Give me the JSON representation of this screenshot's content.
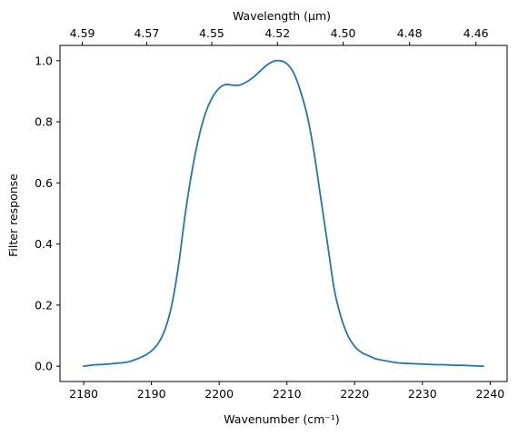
{
  "chart_data": {
    "type": "line",
    "title": "",
    "xlabel": "Wavenumber (cm⁻¹)",
    "ylabel": "Filter response",
    "top_xlabel": "Wavelength (μm)",
    "xlim": [
      2176.5,
      2242.5
    ],
    "ylim": [
      -0.05,
      1.05
    ],
    "x_ticks": [
      2180,
      2190,
      2200,
      2210,
      2220,
      2230,
      2240
    ],
    "y_ticks": [
      0.0,
      0.2,
      0.4,
      0.6,
      0.8,
      1.0
    ],
    "top_ticks": [
      {
        "wavenumber": 2179.8,
        "label": "4.59"
      },
      {
        "wavenumber": 2189.3,
        "label": "4.57"
      },
      {
        "wavenumber": 2198.9,
        "label": "4.55"
      },
      {
        "wavenumber": 2208.6,
        "label": "4.52"
      },
      {
        "wavenumber": 2218.3,
        "label": "4.50"
      },
      {
        "wavenumber": 2228.1,
        "label": "4.48"
      },
      {
        "wavenumber": 2237.9,
        "label": "4.46"
      }
    ],
    "grid": false,
    "colors": {
      "line": "#1f77b4"
    },
    "series": [
      {
        "x": [
          2180,
          2181,
          2182,
          2183,
          2184,
          2185,
          2186,
          2187,
          2188,
          2189,
          2190,
          2191,
          2192,
          2193,
          2194,
          2195,
          2196,
          2197,
          2198,
          2199,
          2200,
          2201,
          2202,
          2203,
          2204,
          2205,
          2206,
          2207,
          2208,
          2209,
          2210,
          2211,
          2212,
          2213,
          2214,
          2215,
          2216,
          2217,
          2218,
          2219,
          2220,
          2221,
          2222,
          2223,
          2224,
          2225,
          2226,
          2227,
          2228,
          2229,
          2230,
          2231,
          2232,
          2233,
          2234,
          2235,
          2236,
          2237,
          2238,
          2239
        ],
        "y": [
          0.0,
          0.003,
          0.005,
          0.006,
          0.008,
          0.01,
          0.012,
          0.017,
          0.025,
          0.035,
          0.05,
          0.075,
          0.12,
          0.2,
          0.33,
          0.5,
          0.64,
          0.75,
          0.83,
          0.88,
          0.91,
          0.922,
          0.92,
          0.92,
          0.93,
          0.945,
          0.965,
          0.985,
          0.998,
          1.0,
          0.99,
          0.96,
          0.9,
          0.82,
          0.7,
          0.55,
          0.4,
          0.25,
          0.16,
          0.1,
          0.065,
          0.045,
          0.035,
          0.025,
          0.02,
          0.016,
          0.012,
          0.01,
          0.009,
          0.008,
          0.007,
          0.006,
          0.005,
          0.005,
          0.004,
          0.003,
          0.003,
          0.002,
          0.001,
          0.0
        ]
      }
    ]
  }
}
